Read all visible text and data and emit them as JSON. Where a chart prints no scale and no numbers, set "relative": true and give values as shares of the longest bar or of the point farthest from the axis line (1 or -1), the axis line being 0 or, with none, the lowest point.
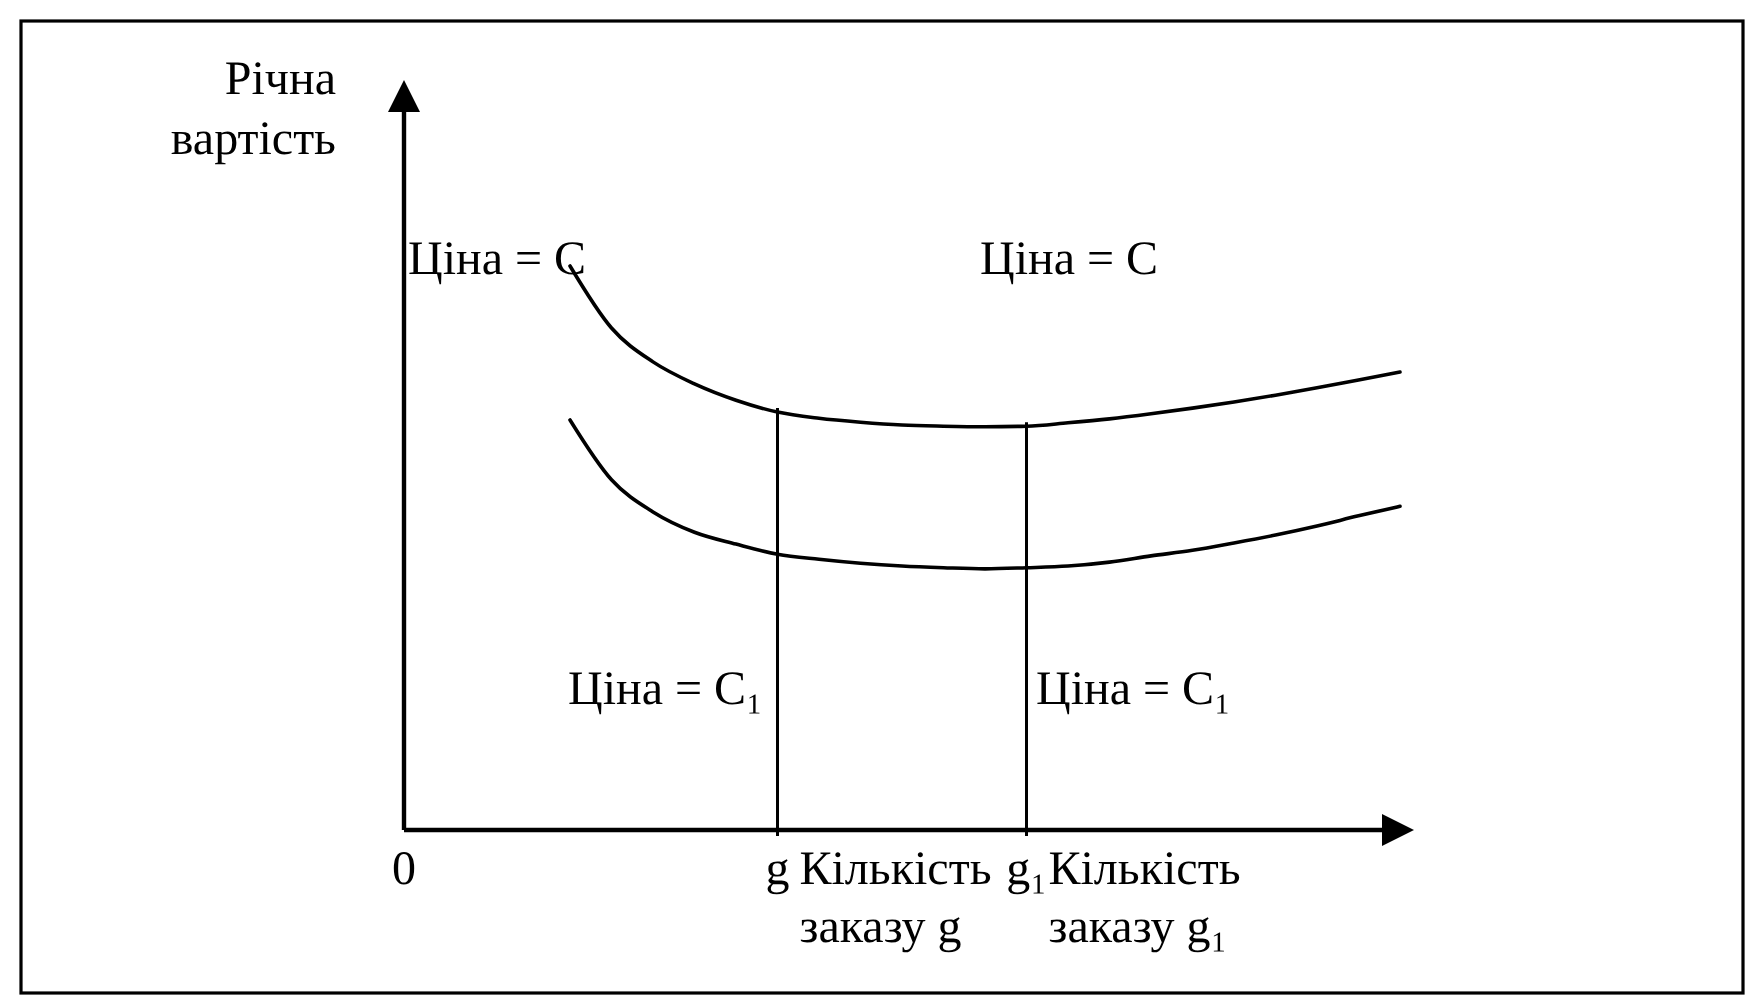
{
  "chart_data": {
    "type": "line",
    "relative": true,
    "ylabel": "Річна вартість",
    "categories": [
      "0",
      null,
      null,
      null,
      null,
      null,
      null,
      null,
      null,
      "g",
      null,
      null,
      null,
      null,
      null,
      "g₁",
      null,
      null,
      null,
      null,
      null,
      null,
      null,
      null,
      null
    ],
    "series": [
      {
        "color": "#000000",
        "values": [
          null,
          null,
          null,
          null,
          1,
          0.89,
          0.83,
          0.791,
          0.762,
          0.741,
          0.73,
          0.723,
          0.718,
          0.716,
          0.715,
          0.716,
          0.722,
          0.729,
          0.738,
          0.748,
          0.759,
          0.771,
          0.784,
          0.798,
          0.812
        ]
      },
      {
        "color": "#000000",
        "values": [
          null,
          null,
          null,
          null,
          0.727,
          0.621,
          0.564,
          0.528,
          0.507,
          0.489,
          0.48,
          0.473,
          0.468,
          0.465,
          0.463,
          0.465,
          0.468,
          0.475,
          0.486,
          0.496,
          0.509,
          0.523,
          0.539,
          0.557,
          0.574
        ]
      }
    ],
    "ref_lines": [
      {
        "axis": "x",
        "value": "g",
        "label": "Кількість заказу g",
        "color": "#000000"
      },
      {
        "axis": "x",
        "value": "g₁",
        "label": "Кількість заказу g₁",
        "color": "#000000"
      }
    ],
    "annotations": [
      "Ціна = C",
      "Ціна = C",
      "Ціна = C₁",
      "Ціна = C₁"
    ],
    "line_style": "solid"
  }
}
